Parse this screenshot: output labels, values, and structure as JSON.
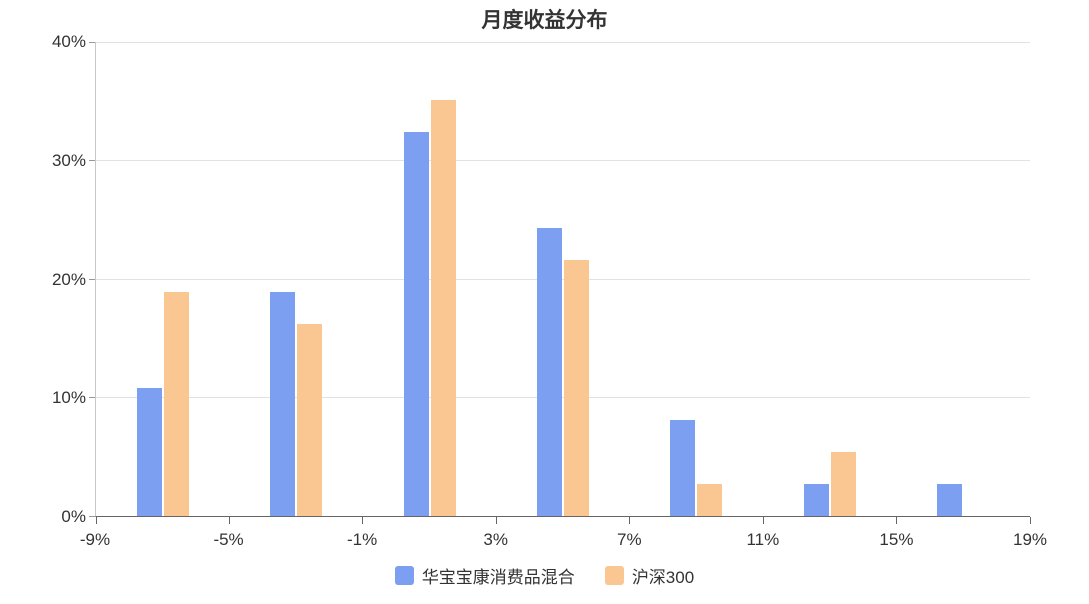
{
  "chart_data": {
    "type": "bar",
    "title": "月度收益分布",
    "x_tick_labels": [
      "-9%",
      "-5%",
      "-1%",
      "3%",
      "7%",
      "11%",
      "15%",
      "19%"
    ],
    "y_tick_labels": [
      "40%",
      "30%",
      "20%",
      "10%",
      "0%"
    ],
    "ylim": [
      0,
      40
    ],
    "y_unit": "%",
    "grid": true,
    "legend_position": "bottom",
    "group_centers": [
      "-7%",
      "-3%",
      "1%",
      "5%",
      "9%",
      "13%",
      "17%"
    ],
    "series": [
      {
        "name": "华宝宝康消费品混合",
        "color": "#7d9ff1",
        "values": [
          10.8,
          18.9,
          32.4,
          24.3,
          8.1,
          2.7,
          2.7
        ]
      },
      {
        "name": "沪深300",
        "color": "#fac793",
        "values": [
          18.9,
          16.2,
          35.1,
          21.6,
          2.7,
          5.4,
          0
        ]
      }
    ]
  },
  "colors": {
    "background": "#ffffff",
    "grid": "#e2e2e2",
    "y_axis_line": "#c9c9c9",
    "x_axis_line": "#666666",
    "text": "#333333"
  }
}
